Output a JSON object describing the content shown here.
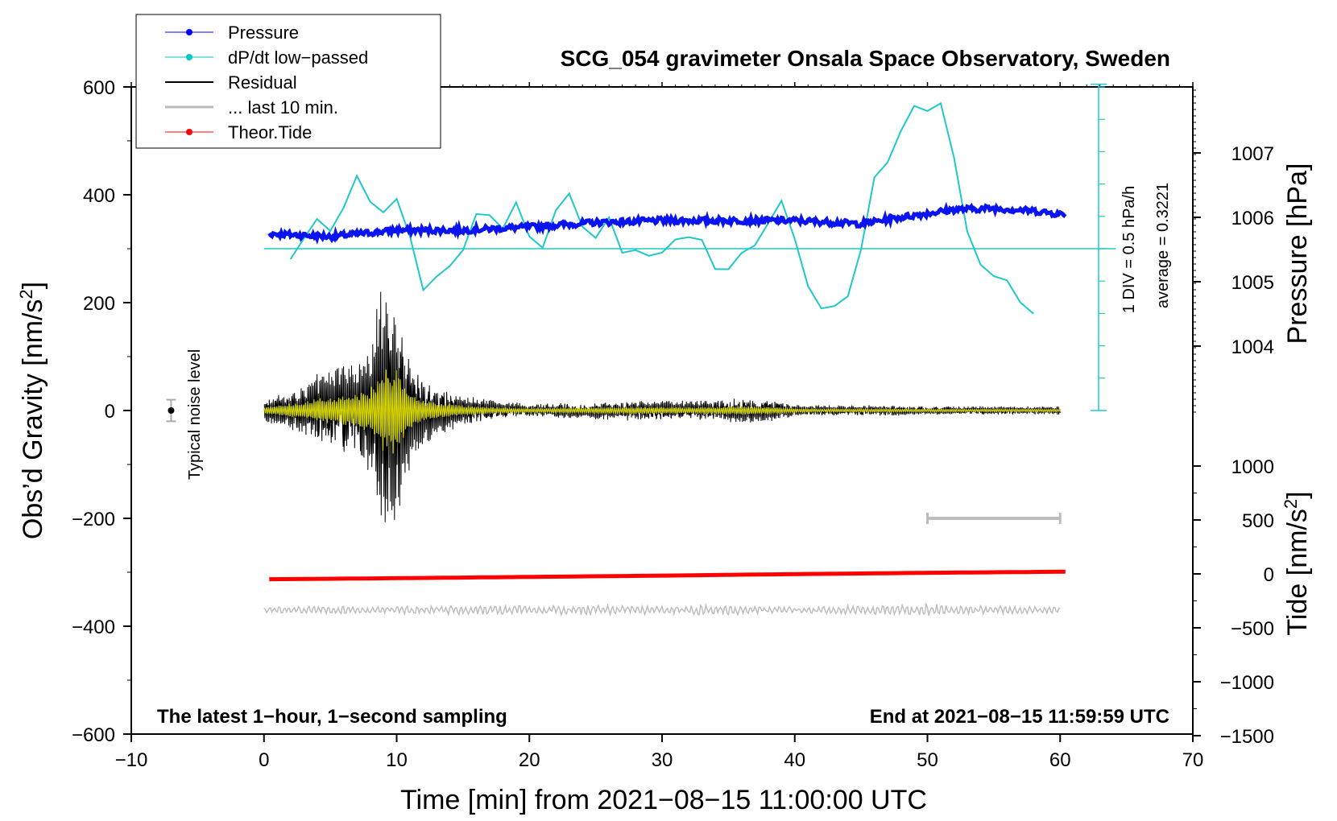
{
  "chart_data": {
    "type": "line",
    "title": "SCG_054 gravimeter Onsala Space Observatory, Sweden",
    "xlabel": "Time [min] from 2021−08−15 11:00:00 UTC",
    "xlim": [
      -10,
      70
    ],
    "x_ticks": [
      -10,
      0,
      10,
      20,
      30,
      40,
      50,
      60,
      70
    ],
    "x_tick_labels": [
      "−10",
      "0",
      "10",
      "20",
      "30",
      "40",
      "50",
      "60",
      "70"
    ],
    "left_axis": {
      "label_main": "Obs’d Gravity [nm/s",
      "label_sup": "2",
      "label_end": "]",
      "ylim": [
        -600,
        600
      ],
      "ticks": [
        -600,
        -400,
        -200,
        0,
        200,
        400,
        600
      ],
      "tick_labels": [
        "−600",
        "−400",
        "−200",
        "0",
        "200",
        "400",
        "600"
      ]
    },
    "pressure_axis": {
      "label": "Pressure [hPa]",
      "ticks": [
        1004,
        1005,
        1006,
        1007
      ],
      "tick_labels": [
        "1004",
        "1005",
        "1006",
        "1007"
      ]
    },
    "tide_axis": {
      "label_main": "Tide [nm/s",
      "label_sup": "2",
      "label_end": "]",
      "ticks": [
        -1500,
        -1000,
        -500,
        0,
        500,
        1000
      ],
      "tick_labels": [
        "−1500",
        "−1000",
        "−500",
        "0",
        "500",
        "1000"
      ]
    },
    "dpdt_scale": {
      "div_label": "1 DIV = 0.5 hPa/h",
      "average_label": "average = 0.3221",
      "average_hPa_per_h": 0.3221
    },
    "legend": [
      {
        "name": "Pressure",
        "color": "#0000ff",
        "marker": "dot"
      },
      {
        "name": "dP/dt low−passed",
        "color": "#00c8c8",
        "marker": "dot"
      },
      {
        "name": "Residual",
        "color": "#000000",
        "marker": "none"
      },
      {
        "name": "... last 10 min.",
        "color": "#bbbbbb",
        "marker": "none"
      },
      {
        "name": "Theor.Tide",
        "color": "#ff0000",
        "marker": "dot"
      }
    ],
    "noise_label": "Typical noise level",
    "noise_level": {
      "x": -7,
      "center": 0,
      "halfwidth": 20
    },
    "bottom_left_note": "The latest 1−hour, 1−second sampling",
    "bottom_right_note": "End at 2021−08−15 11:59:59 UTC",
    "last10_bar": {
      "x0": 50,
      "x1": 60,
      "y": -200
    },
    "series": [
      {
        "name": "Pressure",
        "axis": "pressure_hPa",
        "x": [
          0,
          5,
          10,
          15,
          20,
          25,
          30,
          35,
          40,
          45,
          48,
          52,
          55,
          58,
          60
        ],
        "y": [
          1005.75,
          1005.7,
          1005.8,
          1005.8,
          1005.85,
          1005.92,
          1005.95,
          1005.95,
          1005.95,
          1005.9,
          1006.0,
          1006.12,
          1006.14,
          1006.1,
          1006.05
        ]
      },
      {
        "name": "dP/dt low−passed",
        "axis": "gravity_plot_units",
        "x": [
          2.0,
          3.0,
          4.0,
          5.0,
          6.0,
          7.0,
          8.0,
          9.0,
          10.0,
          11.0,
          12.0,
          13.0,
          14.0,
          15.0,
          16.0,
          17.0,
          18.0,
          19.0,
          20.0,
          21.0,
          22.0,
          23.0,
          24.0,
          25.0,
          26.0,
          27.0,
          28.0,
          29.0,
          30.0,
          31.0,
          32.0,
          33.0,
          34.0,
          35.0,
          36.0,
          37.0,
          38.0,
          39.0,
          40.0,
          41.0,
          42.0,
          43.0,
          44.0,
          45.0,
          46.0,
          47.0,
          48.0,
          49.0,
          50.0,
          51.0,
          52.0,
          53.0,
          54.0,
          55.0,
          56.0,
          57.0,
          58.0
        ],
        "y": [
          280,
          320,
          355,
          330,
          375,
          435,
          385,
          365,
          395,
          320,
          225,
          250,
          265,
          300,
          365,
          365,
          340,
          385,
          320,
          300,
          370,
          405,
          340,
          320,
          360,
          290,
          300,
          285,
          295,
          320,
          320,
          315,
          260,
          260,
          290,
          305,
          350,
          390,
          320,
          230,
          190,
          195,
          210,
          300,
          430,
          460,
          520,
          565,
          555,
          570,
          470,
          330,
          270,
          250,
          240,
          200,
          180
        ]
      },
      {
        "name": "Residual",
        "axis": "gravity",
        "x": [
          0,
          1,
          2,
          3,
          4,
          5,
          6,
          7,
          8,
          9,
          10,
          11,
          12,
          13,
          14,
          15,
          16,
          17,
          18,
          19,
          20,
          22,
          24,
          26,
          28,
          30,
          32,
          34,
          36,
          38,
          40,
          42,
          44,
          46,
          48,
          50,
          52,
          54,
          56,
          58,
          60
        ],
        "y": [
          20,
          30,
          40,
          45,
          70,
          80,
          90,
          100,
          130,
          250,
          240,
          110,
          70,
          50,
          40,
          30,
          25,
          20,
          18,
          15,
          12,
          14,
          16,
          18,
          20,
          20,
          18,
          20,
          25,
          22,
          12,
          10,
          10,
          10,
          10,
          8,
          8,
          8,
          8,
          8,
          8
        ]
      },
      {
        "name": "... last 10 min.",
        "axis": "gravity_offset_-370",
        "x": [
          0,
          5,
          10,
          15,
          20,
          25,
          30,
          35,
          40,
          45,
          50,
          55,
          60
        ],
        "y": [
          6,
          8,
          7,
          9,
          10,
          9,
          8,
          10,
          7,
          9,
          11,
          8,
          8
        ]
      },
      {
        "name": "Theor.Tide",
        "axis": "tide_nm_s2",
        "x": [
          0,
          10,
          20,
          30,
          40,
          50,
          60
        ],
        "y": [
          -50,
          -40,
          -28,
          -16,
          -2,
          10,
          20
        ]
      }
    ]
  }
}
